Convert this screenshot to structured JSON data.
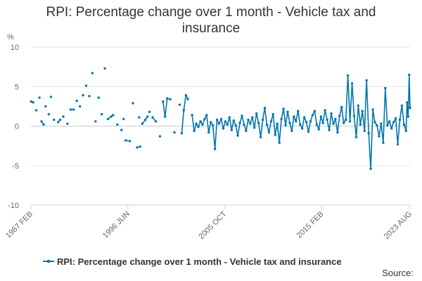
{
  "header": {
    "title_line1": "RPI: Percentage change over 1 month - Vehicle tax and",
    "title_line2": "insurance"
  },
  "footer": {
    "source": "Source:"
  },
  "chart_data": {
    "type": "line",
    "title": "RPI: Percentage change over 1 month - Vehicle tax and insurance",
    "ylabel": "%",
    "xlabel": "",
    "ylim": [
      -10,
      10
    ],
    "yticks": [
      10,
      5,
      0,
      -5,
      -10
    ],
    "xlim": [
      1987.083,
      2023.583
    ],
    "xticks": [
      {
        "label": "1987 FEB",
        "x": 1987.083
      },
      {
        "label": "1996 JUN",
        "x": 1996.417
      },
      {
        "label": "2005 OCT",
        "x": 2005.75
      },
      {
        "label": "2015 FEB",
        "x": 2015.083
      },
      {
        "label": "2023 AUG",
        "x": 2023.583
      }
    ],
    "grid": "horizontal",
    "legend": "bottom",
    "color": "#0075b0",
    "series": [
      {
        "name": "RPI: Percentage change over 1 month - Vehicle tax and insurance",
        "segments": [
          [
            [
              1987.1,
              3.1
            ],
            [
              1987.3,
              3.0
            ]
          ],
          [
            [
              1987.6,
              2.0
            ]
          ],
          [
            [
              1987.9,
              3.6
            ]
          ],
          [
            [
              1988.1,
              0.6
            ],
            [
              1988.3,
              0.2
            ]
          ],
          [
            [
              1988.5,
              2.5
            ]
          ],
          [
            [
              1988.8,
              1.5
            ]
          ],
          [
            [
              1989.0,
              3.7
            ]
          ],
          [
            [
              1989.3,
              0.8
            ]
          ],
          [
            [
              1989.7,
              0.5
            ],
            [
              1989.9,
              0.8
            ]
          ],
          [
            [
              1990.2,
              1.2
            ]
          ],
          [
            [
              1990.6,
              0.3
            ]
          ],
          [
            [
              1990.9,
              2.1
            ],
            [
              1991.2,
              2.1
            ]
          ],
          [
            [
              1991.5,
              3.2
            ]
          ],
          [
            [
              1991.8,
              2.5
            ]
          ],
          [
            [
              1992.1,
              3.9
            ]
          ],
          [
            [
              1992.4,
              5.1
            ]
          ],
          [
            [
              1992.7,
              3.8
            ]
          ],
          [
            [
              1993.0,
              6.7
            ]
          ],
          [
            [
              1993.3,
              0.6
            ]
          ],
          [
            [
              1993.6,
              3.6
            ]
          ],
          [
            [
              1993.9,
              1.5
            ]
          ],
          [
            [
              1994.2,
              7.3
            ]
          ],
          [
            [
              1994.5,
              0.9
            ],
            [
              1994.8,
              1.2
            ],
            [
              1995.0,
              1.4
            ]
          ],
          [
            [
              1995.4,
              0.2
            ]
          ],
          [
            [
              1995.8,
              -0.5
            ]
          ],
          [
            [
              1996.0,
              0.9
            ]
          ],
          [
            [
              1996.2,
              -1.8
            ],
            [
              1996.6,
              -1.9
            ]
          ],
          [
            [
              1996.9,
              2.9
            ]
          ],
          [
            [
              1997.3,
              -2.7
            ],
            [
              1997.6,
              -2.6
            ]
          ],
          [
            [
              1997.5,
              1.1
            ]
          ],
          [
            [
              1997.8,
              0.3
            ],
            [
              1998.1,
              0.8
            ],
            [
              1998.3,
              1.2
            ]
          ],
          [
            [
              1998.5,
              1.8
            ]
          ],
          [
            [
              1998.8,
              1.1
            ],
            [
              1999.1,
              0.6
            ]
          ],
          [
            [
              1999.5,
              -1.3
            ]
          ],
          [
            [
              1999.8,
              3.1
            ],
            [
              2000.0,
              1.2
            ],
            [
              2000.2,
              3.5
            ],
            [
              2000.5,
              3.4
            ]
          ],
          [
            [
              2000.9,
              -0.8
            ]
          ],
          [
            [
              2001.4,
              2.7
            ]
          ],
          [
            [
              2001.6,
              -0.9
            ],
            [
              2001.8,
              2.0
            ],
            [
              2002.0,
              3.9
            ],
            [
              2002.2,
              3.4
            ]
          ],
          [
            [
              2002.6,
              1.4
            ],
            [
              2002.8,
              -0.6
            ],
            [
              2003.0,
              0.3
            ],
            [
              2003.2,
              -0.1
            ],
            [
              2003.4,
              0.6
            ],
            [
              2003.6,
              0.2
            ],
            [
              2003.8,
              0.9
            ],
            [
              2004.0,
              1.4
            ],
            [
              2004.2,
              -0.8
            ],
            [
              2004.4,
              0.5
            ],
            [
              2004.6,
              0.1
            ],
            [
              2004.8,
              -2.9
            ],
            [
              2005.0,
              0.8
            ],
            [
              2005.2,
              0.3
            ],
            [
              2005.4,
              0.9
            ],
            [
              2005.6,
              -0.3
            ],
            [
              2005.8,
              0.6
            ],
            [
              2006.0,
              0.2
            ],
            [
              2006.2,
              1.1
            ],
            [
              2006.4,
              -0.5
            ],
            [
              2006.6,
              0.7
            ],
            [
              2006.8,
              0.1
            ],
            [
              2007.0,
              -1.2
            ],
            [
              2007.2,
              0.4
            ],
            [
              2007.4,
              1.3
            ],
            [
              2007.6,
              0.2
            ],
            [
              2007.8,
              -0.6
            ],
            [
              2008.0,
              0.8
            ],
            [
              2008.2,
              0.3
            ],
            [
              2008.4,
              1.1
            ],
            [
              2008.6,
              -0.2
            ],
            [
              2008.8,
              1.6
            ],
            [
              2009.0,
              0.4
            ],
            [
              2009.2,
              -1.4
            ],
            [
              2009.4,
              0.8
            ],
            [
              2009.6,
              2.3
            ],
            [
              2009.8,
              0.2
            ],
            [
              2010.0,
              -0.8
            ],
            [
              2010.2,
              0.6
            ],
            [
              2010.4,
              1.5
            ],
            [
              2010.6,
              -1.1
            ],
            [
              2010.8,
              0.3
            ],
            [
              2011.0,
              -2.1
            ],
            [
              2011.2,
              0.9
            ],
            [
              2011.4,
              2.2
            ],
            [
              2011.6,
              0.1
            ],
            [
              2011.8,
              1.8
            ],
            [
              2012.0,
              0.4
            ],
            [
              2012.2,
              -0.6
            ],
            [
              2012.4,
              1.2
            ],
            [
              2012.6,
              0.6
            ],
            [
              2012.8,
              1.9
            ],
            [
              2013.0,
              0.2
            ],
            [
              2013.2,
              -0.3
            ],
            [
              2013.4,
              1.1
            ],
            [
              2013.6,
              0.5
            ],
            [
              2013.8,
              -0.7
            ],
            [
              2014.0,
              0.6
            ],
            [
              2014.2,
              1.4
            ],
            [
              2014.4,
              1.9
            ],
            [
              2014.6,
              0.2
            ],
            [
              2014.8,
              -0.4
            ],
            [
              2015.0,
              1.2
            ],
            [
              2015.2,
              0.4
            ],
            [
              2015.4,
              2.0
            ],
            [
              2015.6,
              0.8
            ],
            [
              2015.8,
              -0.5
            ],
            [
              2016.0,
              1.6
            ],
            [
              2016.2,
              0.3
            ],
            [
              2016.4,
              0.9
            ],
            [
              2016.6,
              -0.8
            ],
            [
              2016.8,
              1.3
            ],
            [
              2017.0,
              2.4
            ],
            [
              2017.2,
              0.4
            ],
            [
              2017.4,
              0.8
            ],
            [
              2017.6,
              6.4
            ],
            [
              2017.8,
              0.6
            ],
            [
              2018.0,
              5.4
            ],
            [
              2018.2,
              1.3
            ],
            [
              2018.4,
              -1.4
            ],
            [
              2018.6,
              2.6
            ],
            [
              2018.8,
              0.2
            ],
            [
              2019.0,
              1.9
            ],
            [
              2019.2,
              -0.6
            ],
            [
              2019.4,
              5.8
            ],
            [
              2019.6,
              -0.9
            ],
            [
              2019.8,
              -5.4
            ],
            [
              2020.0,
              2.1
            ],
            [
              2020.2,
              0.5
            ],
            [
              2020.4,
              0.1
            ],
            [
              2020.6,
              -1.3
            ],
            [
              2020.8,
              0.3
            ],
            [
              2021.0,
              -2.1
            ],
            [
              2021.2,
              4.8
            ],
            [
              2021.4,
              0.1
            ],
            [
              2021.6,
              0.6
            ],
            [
              2021.8,
              -0.3
            ],
            [
              2022.0,
              0.5
            ],
            [
              2022.2,
              1.0
            ],
            [
              2022.4,
              -2.3
            ],
            [
              2022.6,
              0.8
            ],
            [
              2022.8,
              2.6
            ],
            [
              2023.0,
              0.2
            ],
            [
              2023.2,
              -0.6
            ],
            [
              2023.3,
              3.0
            ],
            [
              2023.4,
              1.2
            ],
            [
              2023.5,
              6.5
            ],
            [
              2023.583,
              2.3
            ]
          ]
        ]
      }
    ]
  }
}
